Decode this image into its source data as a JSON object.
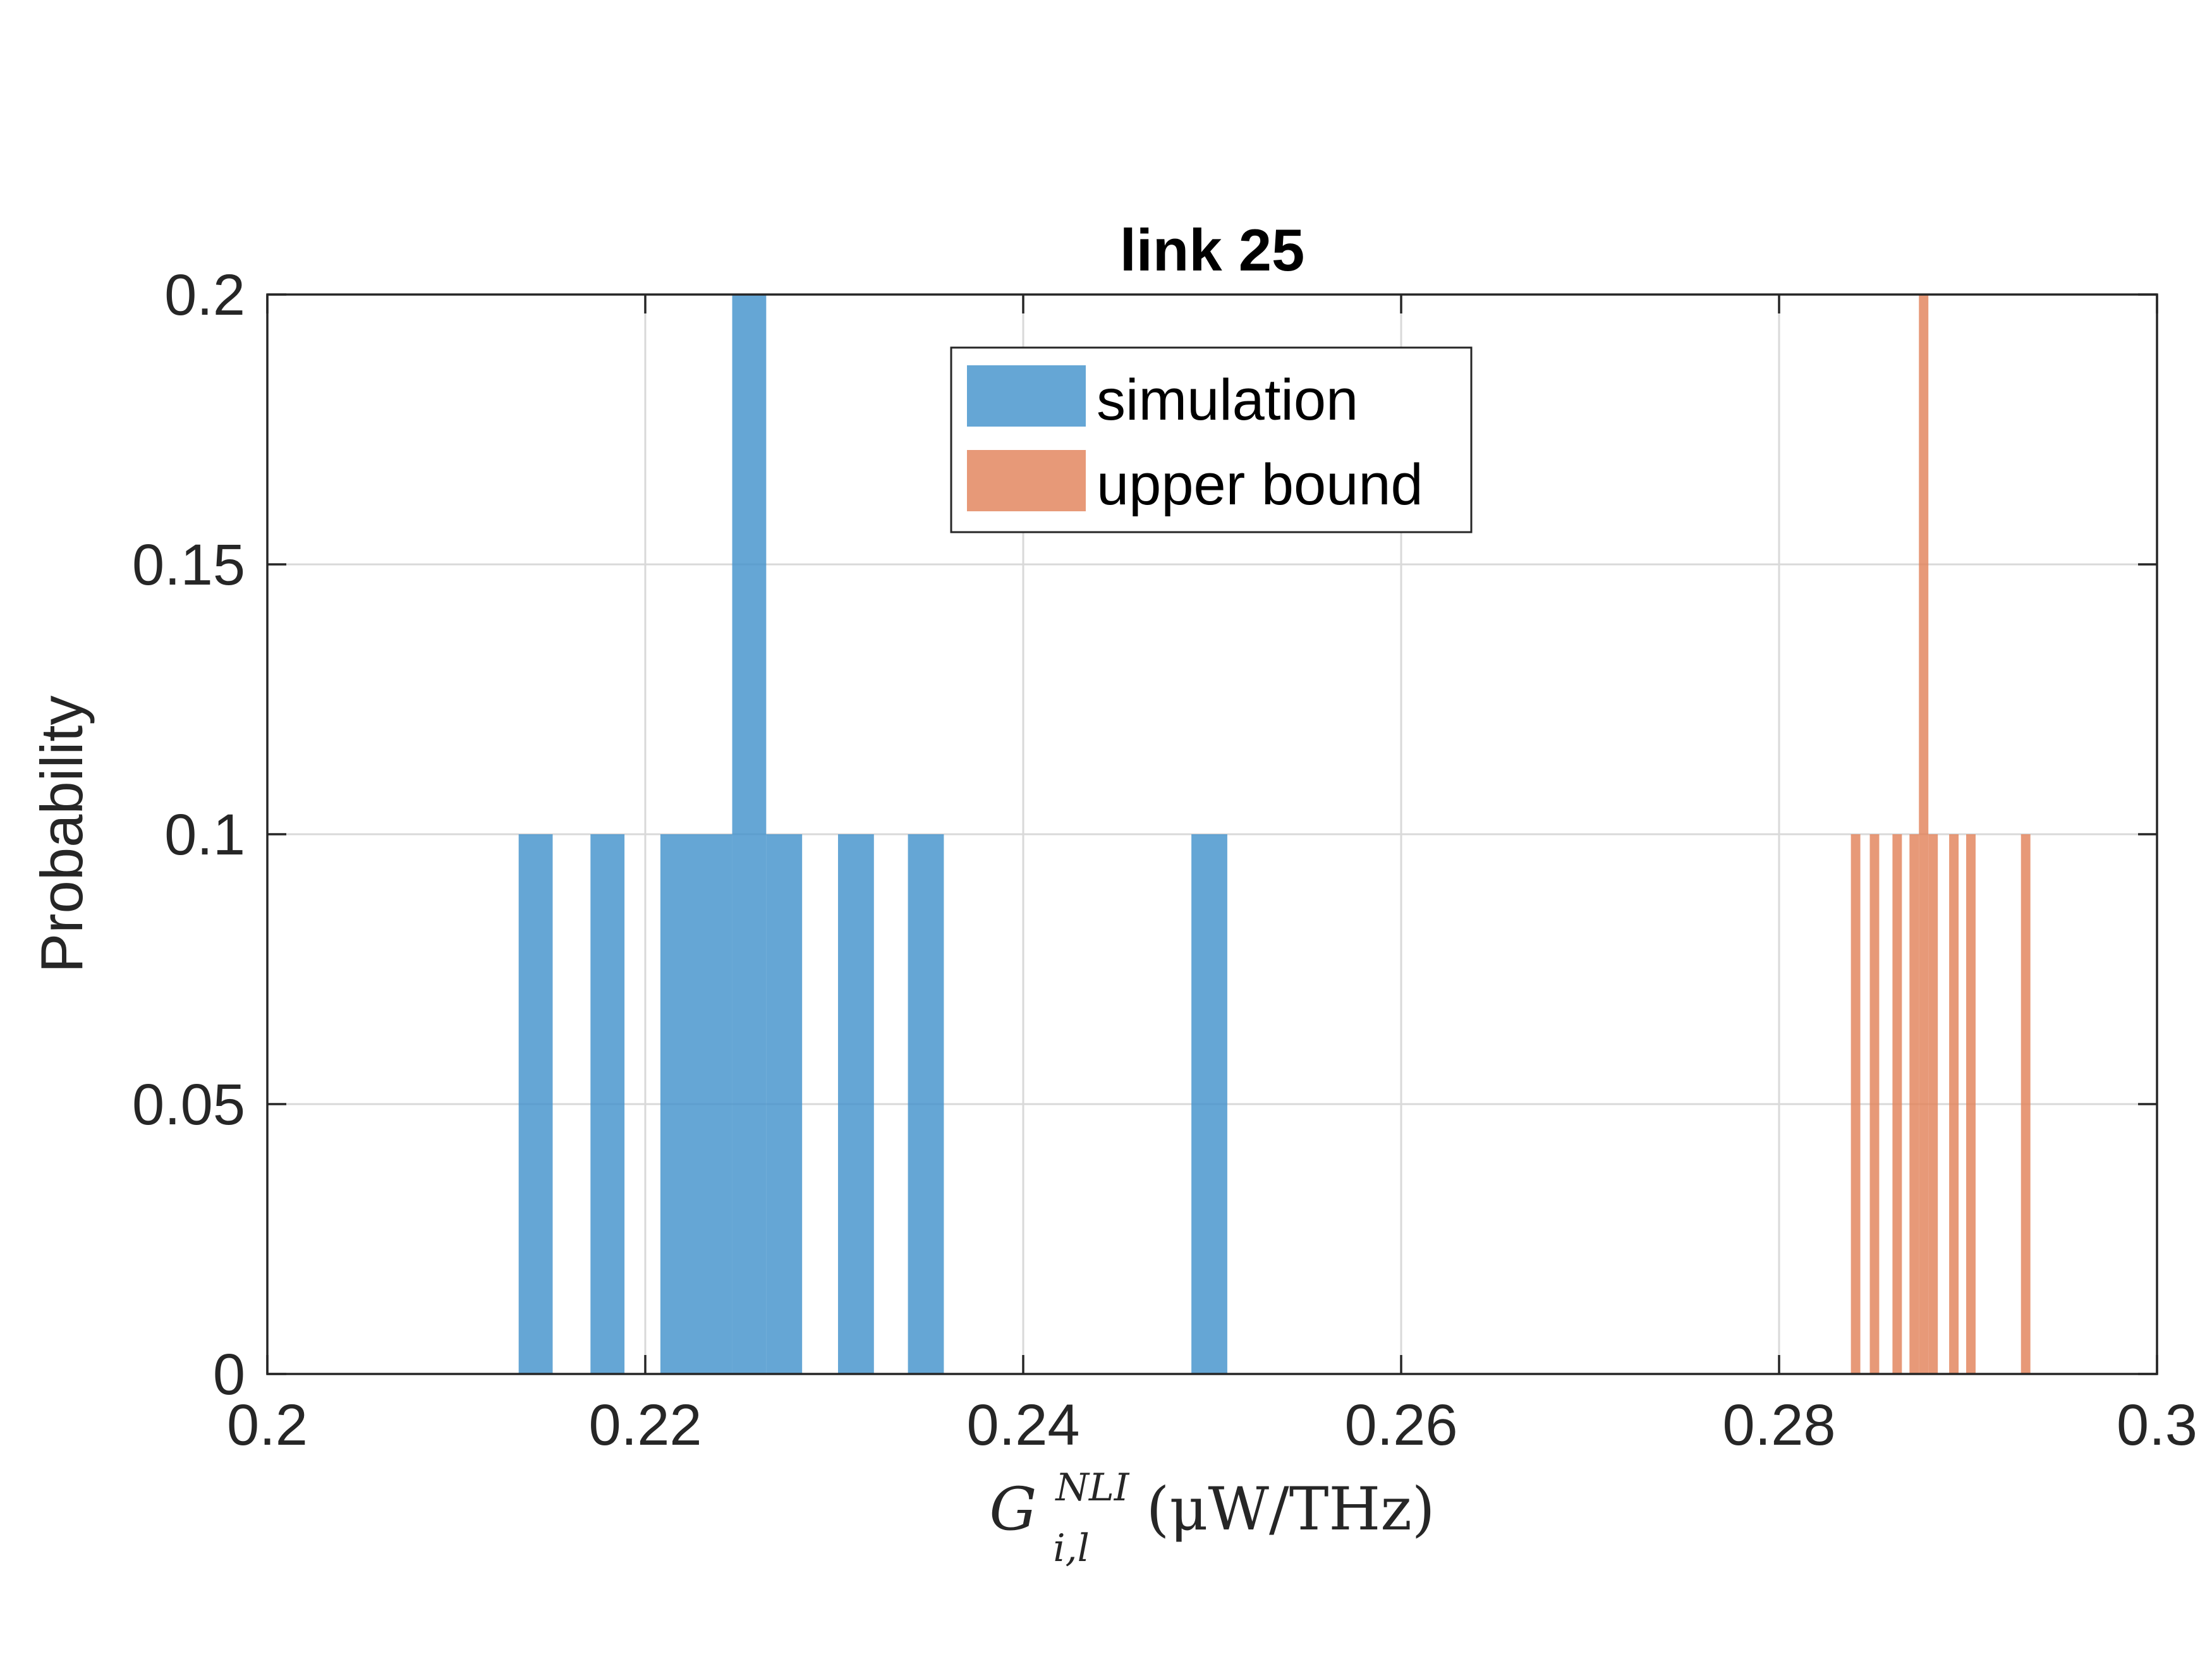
{
  "chart_data": {
    "type": "bar",
    "title": "link 25",
    "ylabel": "Probability",
    "xlabel": {
      "symbol": "G",
      "subscript": "i,l",
      "superscript": "NLI",
      "unit": "(μW/THz)"
    },
    "xlim": [
      0.2,
      0.3
    ],
    "ylim": [
      0,
      0.2
    ],
    "xticks": [
      0.2,
      0.22,
      0.24,
      0.26,
      0.28,
      0.3
    ],
    "xtick_labels": [
      "0.2",
      "0.22",
      "0.24",
      "0.26",
      "0.28",
      "0.3"
    ],
    "yticks": [
      0,
      0.05,
      0.1,
      0.15,
      0.2
    ],
    "ytick_labels": [
      "0",
      "0.05",
      "0.1",
      "0.15",
      "0.2"
    ],
    "grid": true,
    "legend_position": "top-center",
    "series": [
      {
        "name": "simulation",
        "color": "#4393cc",
        "opacity": 0.82,
        "bins": [
          {
            "x0": 0.2133,
            "x1": 0.2151,
            "value": 0.1
          },
          {
            "x0": 0.2171,
            "x1": 0.2189,
            "value": 0.1
          },
          {
            "x0": 0.2208,
            "x1": 0.2246,
            "value": 0.1
          },
          {
            "x0": 0.2246,
            "x1": 0.2264,
            "value": 0.2
          },
          {
            "x0": 0.2264,
            "x1": 0.2283,
            "value": 0.1
          },
          {
            "x0": 0.2302,
            "x1": 0.2321,
            "value": 0.1
          },
          {
            "x0": 0.2339,
            "x1": 0.2358,
            "value": 0.1
          },
          {
            "x0": 0.2489,
            "x1": 0.2508,
            "value": 0.1
          }
        ]
      },
      {
        "name": "upper bound",
        "color": "#e2825a",
        "opacity": 0.82,
        "bins": [
          {
            "x0": 0.2838,
            "x1": 0.2843,
            "value": 0.1
          },
          {
            "x0": 0.2848,
            "x1": 0.2853,
            "value": 0.1
          },
          {
            "x0": 0.286,
            "x1": 0.2865,
            "value": 0.1
          },
          {
            "x0": 0.2869,
            "x1": 0.2874,
            "value": 0.1
          },
          {
            "x0": 0.2874,
            "x1": 0.2879,
            "value": 0.2
          },
          {
            "x0": 0.2879,
            "x1": 0.2884,
            "value": 0.1
          },
          {
            "x0": 0.289,
            "x1": 0.2895,
            "value": 0.1
          },
          {
            "x0": 0.2899,
            "x1": 0.2904,
            "value": 0.1
          },
          {
            "x0": 0.2928,
            "x1": 0.2933,
            "value": 0.1
          }
        ]
      }
    ]
  }
}
